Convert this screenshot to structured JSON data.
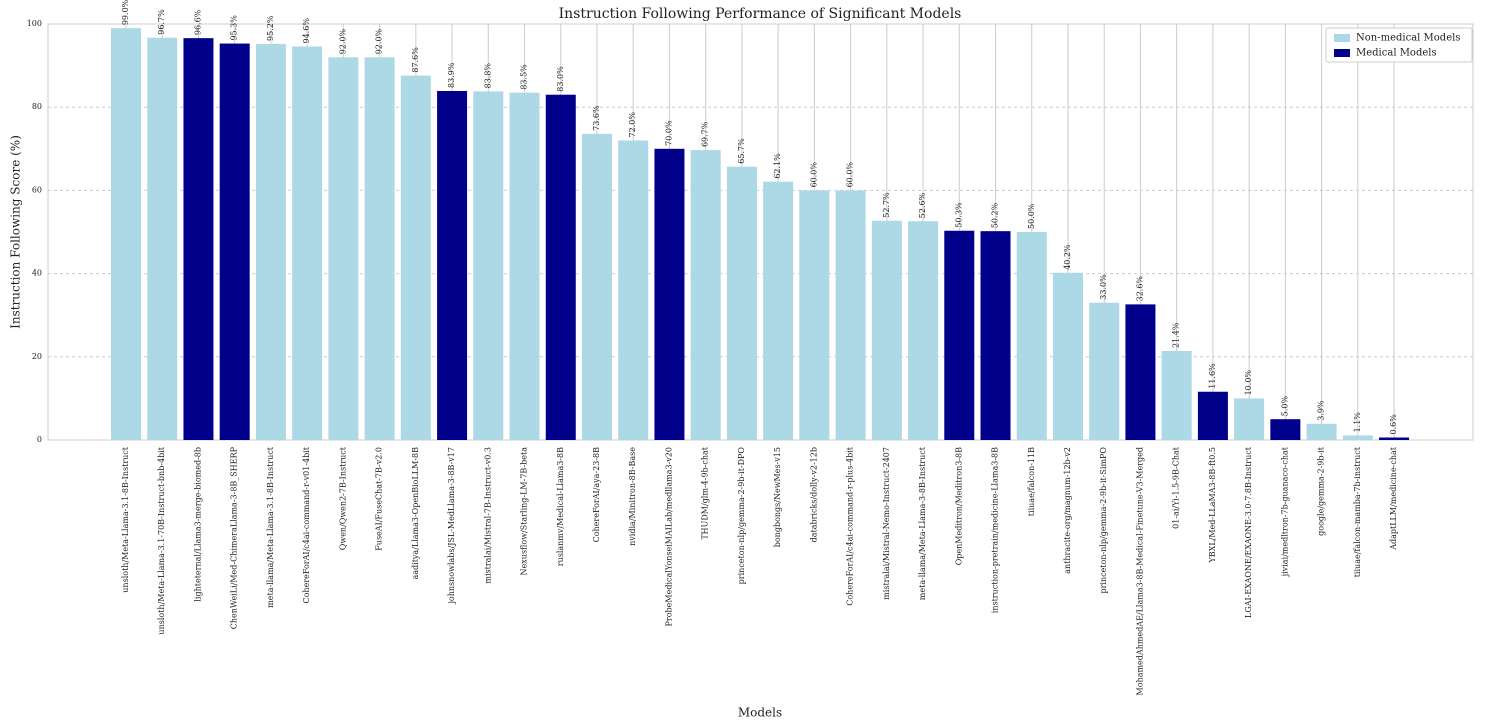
{
  "chart_data": {
    "type": "bar",
    "title": "Instruction Following Performance of Significant Models",
    "x_label": "Models",
    "y_label": "Instruction Following Score (%)",
    "categories": [
      "unsloth/Meta-Llama-3.1-8B-Instruct",
      "unsloth/Meta-Llama-3.1-70B-Instruct-bnb-4bit",
      "lighteternal/Llama3-merge-biomed-8b",
      "ChenWeiLi/Med-ChimeraLlama-3-8B_SHERP",
      "meta-llama/Meta-Llama-3.1-8B-Instruct",
      "CohereForAI/c4ai-command-r-v01-4bit",
      "Qwen/Qwen2-7B-Instruct",
      "FuseAI/FuseChat-7B-v2.0",
      "aaditya/Llama3-OpenBioLLM-8B",
      "johnsnowlabs/JSL-MedLlama-3-8B-v17",
      "mistralai/Mistral-7B-Instruct-v0.3",
      "Nexusflow/Starling-LM-7B-beta",
      "ruslanmv/Medical-Llama3-8B",
      "CohereForAI/aya-23-8B",
      "nvidia/Minitron-8B-Base",
      "ProbeMedicalYonseiMAILab/medllama3-v20",
      "THUDM/glm-4-9b-chat",
      "princeton-nlp/gemma-2-9b-it-DPO",
      "bongbongs/NewMes-v15",
      "databricks/dolly-v2-12b",
      "CohereForAI/c4ai-command-r-plus-4bit",
      "mistralai/Mistral-Nemo-Instruct-2407",
      "meta-llama/Meta-Llama-3-8B-Instruct",
      "OpenMeditron/Meditron3-8B",
      "instruction-pretrain/medicine-Llama3-8B",
      "tiiuae/falcon-11B",
      "anthracite-org/magnum-12b-v2",
      "princeton-nlp/gemma-2-9b-it-SimPO",
      "MohamedAhmedAE/Llama3-8B-Medical-Finetune-V3-Merged",
      "01-ai/Yi-1.5-9B-Chat",
      "YBXL/Med-LLaMA3-8B-ft0.5",
      "LGAI-EXAONE/EXAONE-3.0-7.8B-Instruct",
      "jiviai/medltron-7b-guanaco-chat",
      "google/gemma-2-9b-it",
      "tiiuae/falcon-mamba-7b-instruct",
      "AdaptLLM/medicine-chat"
    ],
    "series": [
      {
        "name": "Non-medical Models",
        "color": "#add8e6",
        "values": [
          99.0,
          96.7,
          null,
          null,
          95.2,
          94.6,
          92.0,
          92.0,
          87.6,
          null,
          83.8,
          83.5,
          null,
          73.6,
          72.0,
          null,
          69.7,
          65.7,
          62.1,
          60.0,
          60.0,
          52.7,
          52.6,
          null,
          null,
          50.0,
          40.2,
          33.0,
          null,
          21.4,
          null,
          10.0,
          null,
          3.9,
          1.1,
          null
        ],
        "value_labels": [
          "99.0%",
          "96.7%",
          null,
          null,
          "95.2%",
          "94.6%",
          "92.0%",
          "92.0%",
          "87.6%",
          null,
          "83.8%",
          "83.5%",
          null,
          "73.6%",
          "72.0%",
          null,
          "69.7%",
          "65.7%",
          "62.1%",
          "60.0%",
          "60.0%",
          "52.7%",
          "52.6%",
          null,
          null,
          "50.0%",
          "40.2%",
          "33.0%",
          null,
          "21.4%",
          null,
          "10.0%",
          null,
          "3.9%",
          "1.1%",
          null
        ]
      },
      {
        "name": "Medical Models",
        "color": "#00008b",
        "values": [
          null,
          null,
          96.6,
          95.3,
          null,
          null,
          null,
          null,
          null,
          83.9,
          null,
          null,
          83.0,
          null,
          null,
          70.0,
          null,
          null,
          null,
          null,
          null,
          null,
          null,
          50.3,
          50.2,
          null,
          null,
          null,
          32.6,
          null,
          11.6,
          null,
          5.0,
          null,
          null,
          0.6
        ],
        "value_labels": [
          null,
          null,
          "96.6%",
          "95.3%",
          null,
          null,
          null,
          null,
          null,
          "83.9%",
          null,
          null,
          "83.0%",
          null,
          null,
          "70.0%",
          null,
          null,
          null,
          null,
          null,
          null,
          null,
          "50.3%",
          "50.2%",
          null,
          null,
          null,
          "32.6%",
          null,
          "11.6%",
          null,
          "5.0%",
          null,
          null,
          "0.6%"
        ]
      }
    ],
    "ylim": [
      0,
      100
    ],
    "yticks": [
      0,
      20,
      40,
      60,
      80,
      100
    ],
    "grid": true,
    "legend": "upper right"
  }
}
